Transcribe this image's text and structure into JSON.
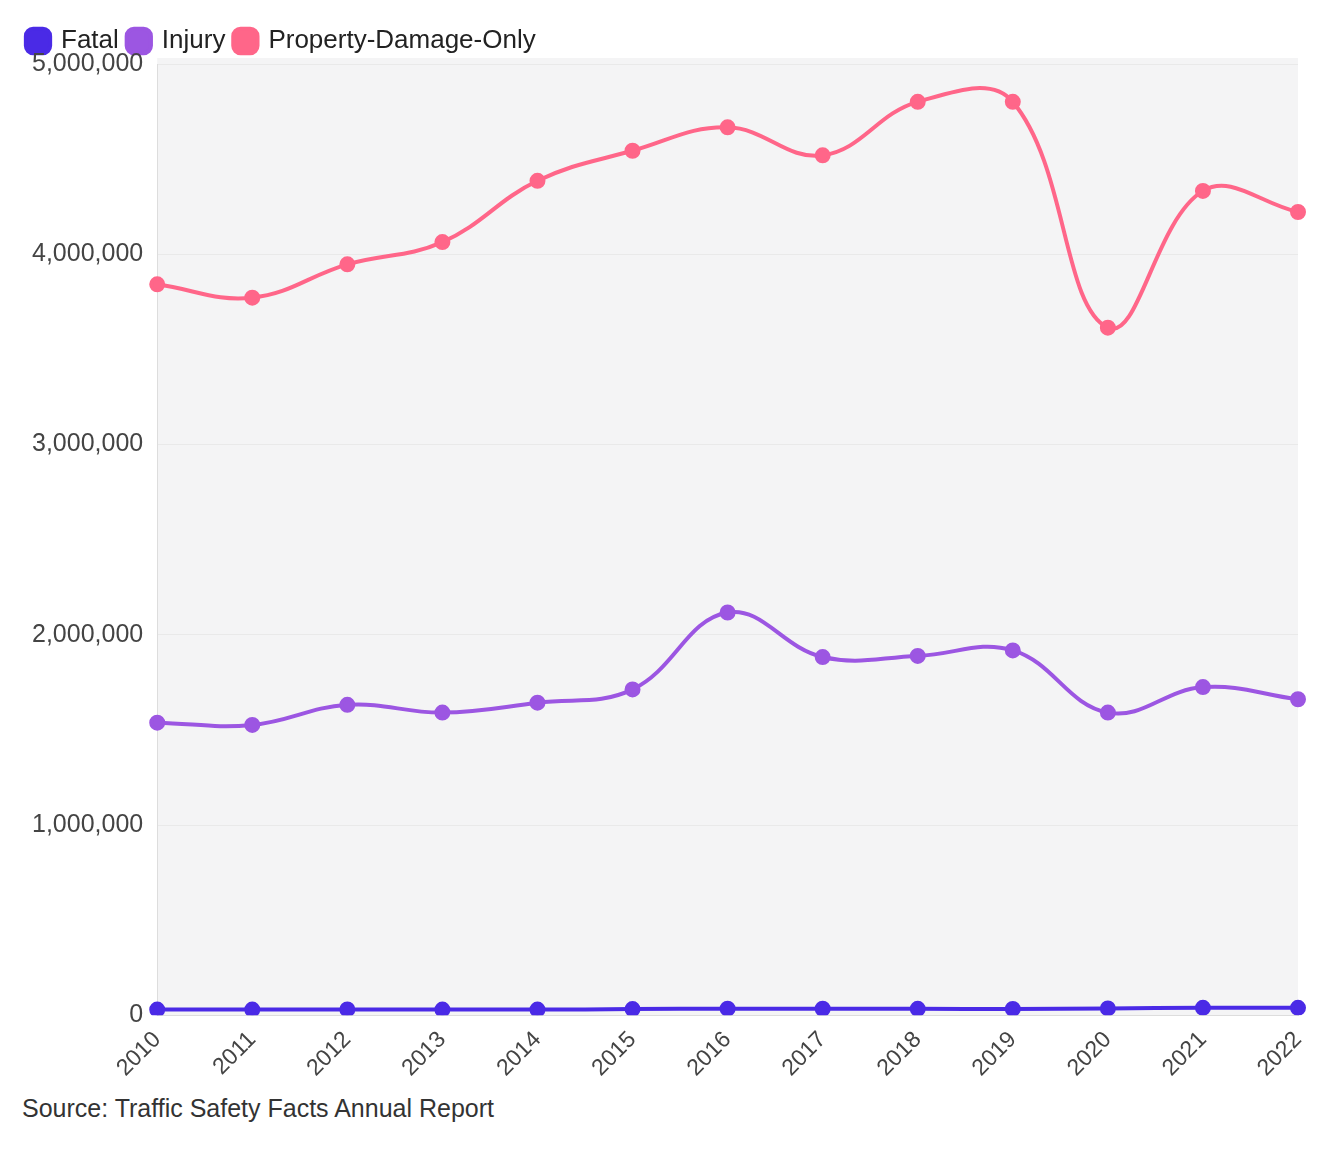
{
  "chart_data": {
    "type": "line",
    "source": "Source: Traffic Safety Facts Annual Report",
    "categories": [
      "2010",
      "2011",
      "2012",
      "2013",
      "2014",
      "2015",
      "2016",
      "2017",
      "2018",
      "2019",
      "2020",
      "2021",
      "2022"
    ],
    "series": [
      {
        "name": "Fatal",
        "color": "#4a2ae6",
        "values": [
          30296,
          29867,
          31006,
          30202,
          30056,
          32538,
          34748,
          34560,
          33919,
          33487,
          35935,
          39508,
          39221
        ]
      },
      {
        "name": "Injury",
        "color": "#9c56e2",
        "values": [
          1538000,
          1526000,
          1632000,
          1591000,
          1643000,
          1713000,
          2117000,
          1883000,
          1889000,
          1918000,
          1591000,
          1725000,
          1661000
        ]
      },
      {
        "name": "Property-Damage-Only",
        "color": "#ff6689",
        "values": [
          3842000,
          3772000,
          3947000,
          4064000,
          4386000,
          4544000,
          4667000,
          4520000,
          4801000,
          4801000,
          3614000,
          4333000,
          4222000
        ]
      }
    ],
    "ylim": [
      0,
      5000000
    ],
    "yticks": [
      0,
      {
        "value": 1000000,
        "label": "1,000,000"
      },
      {
        "value": 2000000,
        "label": "2,000,000"
      },
      {
        "value": 3000000,
        "label": "3,000,000"
      },
      {
        "value": 4000000,
        "label": "4,000,000"
      },
      {
        "value": 5000000,
        "label": "5,000,000"
      }
    ],
    "grid": true,
    "legend": "top-left",
    "marker": "circle"
  }
}
